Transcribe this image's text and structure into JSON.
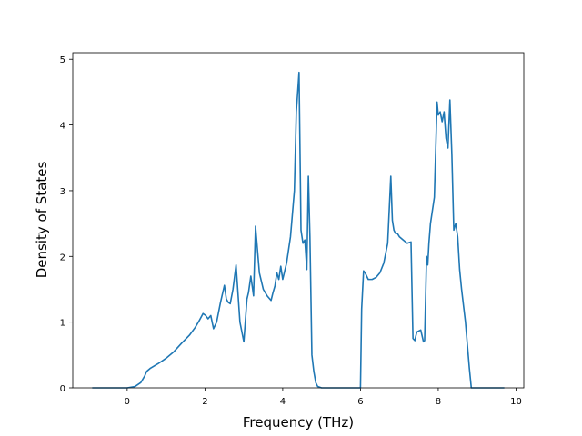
{
  "chart_data": {
    "type": "line",
    "title": "",
    "xlabel": "Frequency (THz)",
    "ylabel": "Density of States",
    "xlim": [
      -1.4,
      10.2
    ],
    "ylim": [
      0,
      5.1
    ],
    "xticks": [
      0,
      2,
      4,
      6,
      8,
      10
    ],
    "yticks": [
      0,
      1,
      2,
      3,
      4,
      5
    ],
    "grid": false,
    "series": [
      {
        "color": "#1f77b4",
        "x": [
          -0.9,
          -0.5,
          0.0,
          0.2,
          0.35,
          0.45,
          0.5,
          0.6,
          0.8,
          1.0,
          1.2,
          1.4,
          1.6,
          1.75,
          1.85,
          1.95,
          2.02,
          2.08,
          2.15,
          2.22,
          2.3,
          2.4,
          2.5,
          2.55,
          2.6,
          2.65,
          2.72,
          2.8,
          2.9,
          3.0,
          3.08,
          3.12,
          3.18,
          3.25,
          3.3,
          3.4,
          3.5,
          3.6,
          3.7,
          3.75,
          3.8,
          3.85,
          3.9,
          3.95,
          4.0,
          4.1,
          4.2,
          4.3,
          4.35,
          4.42,
          4.47,
          4.52,
          4.57,
          4.62,
          4.66,
          4.7,
          4.75,
          4.8,
          4.85,
          4.9,
          5.0,
          5.2,
          6.0,
          6.03,
          6.08,
          6.12,
          6.2,
          6.3,
          6.4,
          6.5,
          6.6,
          6.7,
          6.78,
          6.82,
          6.86,
          6.9,
          6.95,
          7.0,
          7.1,
          7.2,
          7.3,
          7.35,
          7.4,
          7.42,
          7.45,
          7.55,
          7.62,
          7.65,
          7.7,
          7.73,
          7.76,
          7.8,
          7.9,
          7.97,
          8.0,
          8.05,
          8.1,
          8.15,
          8.2,
          8.25,
          8.3,
          8.35,
          8.4,
          8.45,
          8.5,
          8.55,
          8.6,
          8.7,
          8.8,
          8.85,
          9.0,
          9.3,
          9.7
        ],
        "y": [
          0,
          0,
          0,
          0.02,
          0.08,
          0.18,
          0.25,
          0.3,
          0.37,
          0.45,
          0.55,
          0.68,
          0.8,
          0.92,
          1.02,
          1.13,
          1.1,
          1.05,
          1.1,
          0.9,
          1.0,
          1.3,
          1.56,
          1.35,
          1.3,
          1.28,
          1.5,
          1.87,
          1.0,
          0.7,
          1.35,
          1.45,
          1.7,
          1.4,
          2.46,
          1.75,
          1.5,
          1.4,
          1.33,
          1.45,
          1.55,
          1.75,
          1.65,
          1.85,
          1.65,
          1.9,
          2.3,
          3.0,
          4.2,
          4.8,
          2.4,
          2.2,
          2.25,
          1.8,
          3.22,
          2.3,
          0.5,
          0.25,
          0.08,
          0.02,
          0,
          0,
          0,
          1.2,
          1.78,
          1.75,
          1.65,
          1.65,
          1.68,
          1.75,
          1.9,
          2.2,
          3.22,
          2.55,
          2.4,
          2.35,
          2.35,
          2.3,
          2.25,
          2.2,
          2.22,
          0.75,
          0.72,
          0.78,
          0.85,
          0.88,
          0.7,
          0.72,
          2.0,
          1.87,
          2.2,
          2.5,
          2.9,
          4.35,
          4.15,
          4.2,
          4.05,
          4.2,
          3.8,
          3.65,
          4.38,
          3.55,
          2.4,
          2.5,
          2.3,
          1.8,
          1.5,
          1.0,
          0.3,
          0,
          0,
          0,
          0
        ]
      }
    ]
  }
}
